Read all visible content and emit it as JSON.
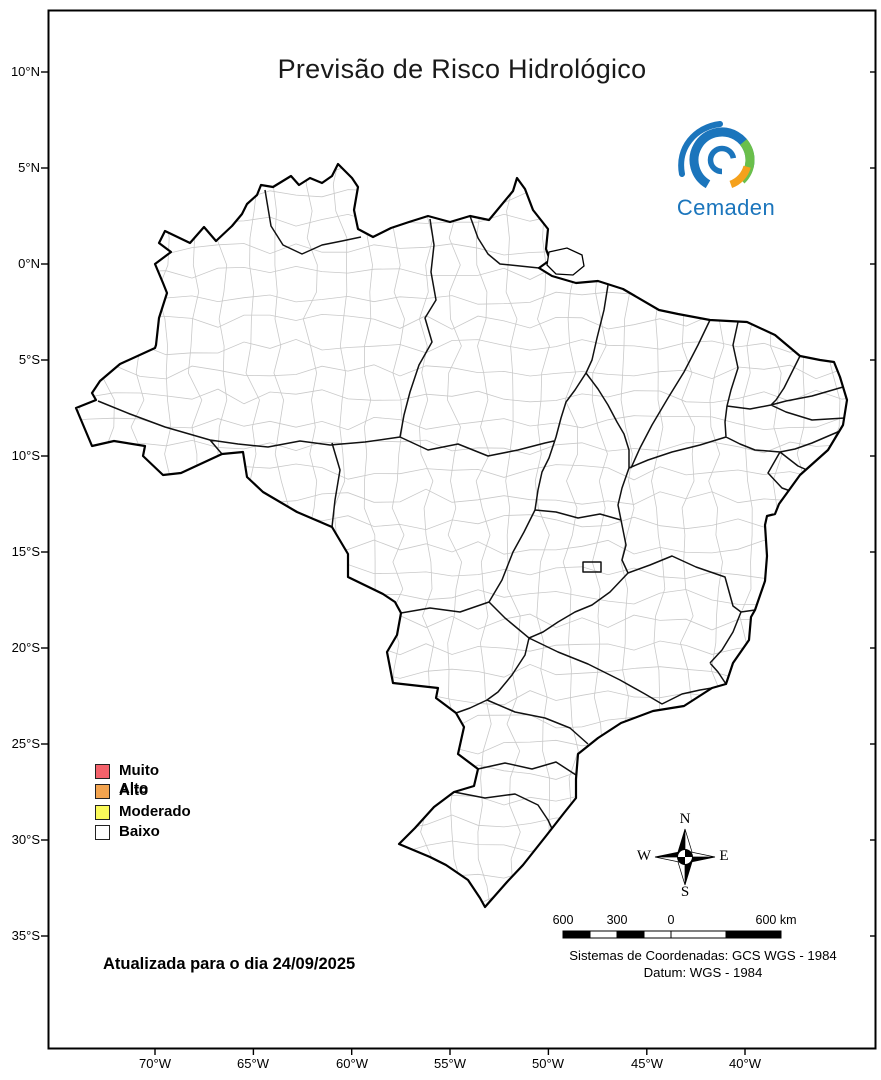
{
  "title": "Previsão de Risco Hidrológico",
  "logo": {
    "wordmark": "Cemaden",
    "blue": "#1b75bc",
    "green": "#6abf4b",
    "orange": "#f5a11c"
  },
  "axes": {
    "lat_labels": [
      "10°N",
      "5°N",
      "0°N",
      "5°S",
      "10°S",
      "15°S",
      "20°S",
      "25°S",
      "30°S",
      "35°S"
    ],
    "lon_labels": [
      "70°W",
      "65°W",
      "60°W",
      "55°W",
      "50°W",
      "45°W",
      "40°W"
    ]
  },
  "legend": {
    "items": [
      {
        "label": "Muito Alto",
        "color": "#f4626b"
      },
      {
        "label": "Alto",
        "color": "#f3a44f"
      },
      {
        "label": "Moderado",
        "color": "#fafa5a"
      },
      {
        "label": "Baixo",
        "color": "#ffffff"
      }
    ]
  },
  "update_note": "Atualizada para o dia 24/09/2025",
  "compass": {
    "north": "N",
    "south": "S",
    "east": "E",
    "west": "W"
  },
  "scale_bar": {
    "labels": [
      "600",
      "300",
      "0",
      "600 km"
    ]
  },
  "coordinate_system": {
    "line1": "Sistemas de Coordenadas: GCS WGS - 1984",
    "line2": "Datum: WGS - 1984"
  }
}
